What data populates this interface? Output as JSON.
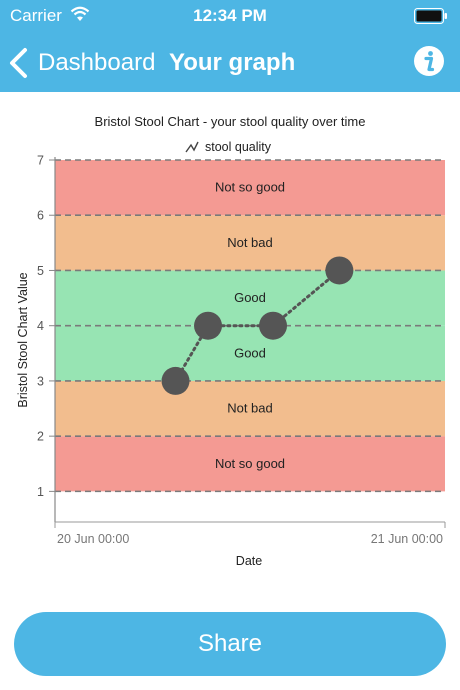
{
  "status_bar": {
    "carrier": "Carrier",
    "time": "12:34 PM"
  },
  "nav": {
    "back_label": "Dashboard",
    "title": "Your graph"
  },
  "share_label": "Share",
  "chart_data": {
    "type": "scatter",
    "title": "Bristol Stool Chart - your stool quality over time",
    "xlabel": "Date",
    "ylabel": "Bristol Stool Chart Value",
    "ylim": [
      0.5,
      7
    ],
    "y_ticks": [
      1,
      2,
      3,
      4,
      5,
      6,
      7
    ],
    "x_ticks": [
      "20 Jun 00:00",
      "21 Jun 00:00"
    ],
    "legend": "top",
    "series": [
      {
        "name": "stool quality",
        "color": "#555555",
        "points": [
          {
            "x": "20 Jun 07:25",
            "y": 3
          },
          {
            "x": "20 Jun 09:25",
            "y": 4
          },
          {
            "x": "20 Jun 13:25",
            "y": 4
          },
          {
            "x": "20 Jun 17:30",
            "y": 5
          }
        ]
      }
    ],
    "bands": [
      {
        "from": 1,
        "to": 2,
        "label": "Not so good",
        "color": "#f49a93"
      },
      {
        "from": 2,
        "to": 3,
        "label": "Not bad",
        "color": "#f2bd8e"
      },
      {
        "from": 3,
        "to": 4,
        "label": "Good",
        "color": "#97e4b3"
      },
      {
        "from": 4,
        "to": 5,
        "label": "Good",
        "color": "#97e4b3"
      },
      {
        "from": 5,
        "to": 6,
        "label": "Not bad",
        "color": "#f2bd8e"
      },
      {
        "from": 6,
        "to": 7,
        "label": "Not so good",
        "color": "#f49a93"
      }
    ]
  }
}
